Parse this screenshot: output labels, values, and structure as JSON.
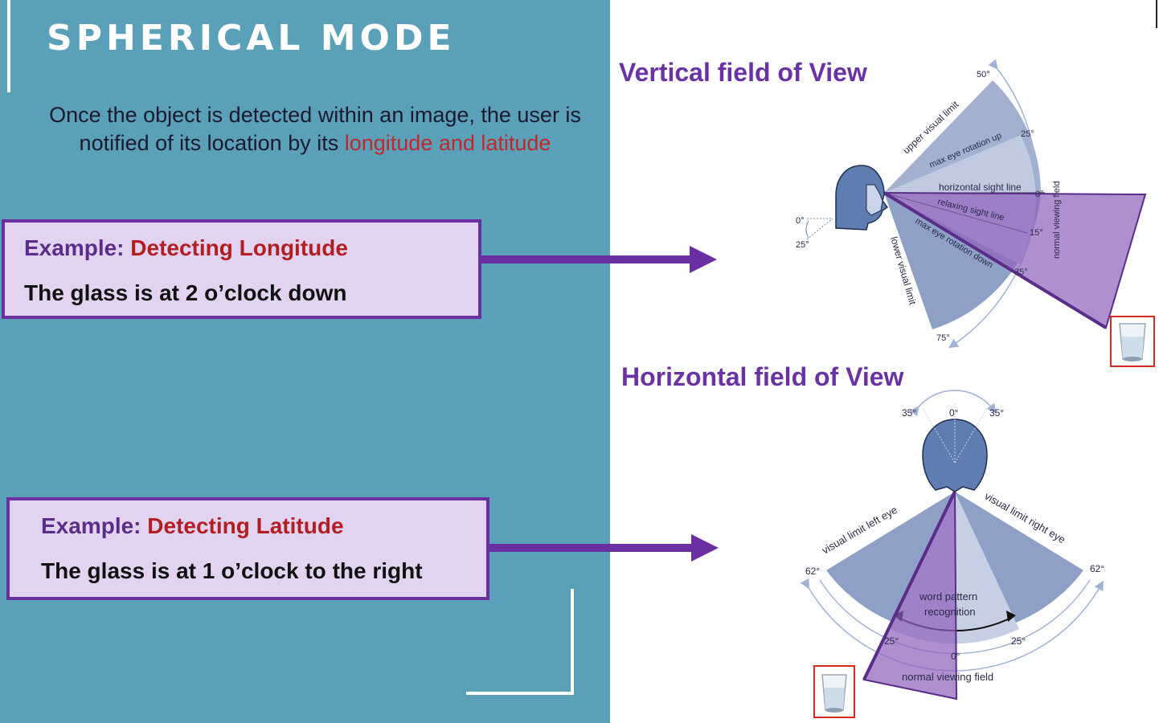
{
  "slide": {
    "title": "SPHERICAL MODE",
    "intro_plain": "Once the object is detected within an image, the user is notified of  its location  by its",
    "intro_highlight": "longitude and latitude"
  },
  "examples": [
    {
      "prefix": "Example:",
      "topic": "Detecting Longitude",
      "text": "The glass is at 2 o’clock down"
    },
    {
      "prefix": "Example:",
      "topic": "Detecting Latitude",
      "text": "The glass is at 1 o’clock to the right"
    }
  ],
  "vertical_fov": {
    "title": "Vertical field of View",
    "labels": {
      "upper_visual_limit": "upper visual limit",
      "max_eye_rotation_up": "max eye rotation up",
      "horizontal_sight_line": "horizontal sight line",
      "relaxing_sight_line": "relaxing sight line",
      "max_eye_rotation_down": "max eye rotation down",
      "lower_visual_limit": "lower visual limit",
      "normal_viewing_field": "normal viewing field",
      "deg_50": "50°",
      "deg_25_up": "25°",
      "deg_0": "0°",
      "deg_15": "15°",
      "deg_35": "35°",
      "deg_75": "75°",
      "head_deg_0": "0°",
      "head_deg_25": "25°"
    }
  },
  "horizontal_fov": {
    "title": "Horizontal field of View",
    "labels": {
      "deg_35_left": "35°",
      "deg_0_top": "0°",
      "deg_35_right": "35°",
      "visual_limit_left_eye": "visual limit left eye",
      "visual_limit_right_eye": "visual limit right eye",
      "deg_62_left": "62°",
      "deg_62_right": "62°",
      "word_pattern_recognition_1": "word pattern",
      "word_pattern_recognition_2": "recognition",
      "deg_25_left": "25°",
      "deg_25_right": "25°",
      "deg_0_bottom": "0°",
      "normal_viewing_field": "normal viewing field"
    }
  },
  "colors": {
    "panel_bg": "#5ba0b9",
    "accent_purple": "#6a2fa0",
    "highlight_red": "#c0282a",
    "fov_blue": "#8a9cc3",
    "head_blue": "#5f7db0"
  },
  "icons": [
    "arrow-right",
    "glass-of-water"
  ]
}
